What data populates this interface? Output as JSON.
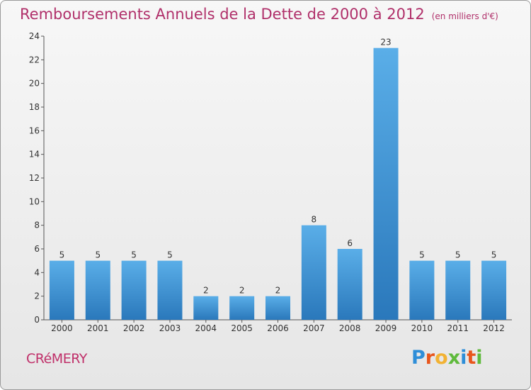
{
  "title": "Remboursements Annuels de la Dette de 2000 à 2012",
  "unit": "(en milliers d'€)",
  "commune": "CRéMERY",
  "brand": {
    "name": "Proxiti",
    "letter_colors": [
      "#2e8ed8",
      "#e8561c",
      "#f2b233",
      "#5fba3c",
      "#2e8ed8",
      "#e8561c",
      "#5fba3c"
    ]
  },
  "colors": {
    "bar": "#4da3e2",
    "bar_dark": "#2f7fc2",
    "title": "#b0306a"
  },
  "chart_data": {
    "type": "bar",
    "categories": [
      "2000",
      "2001",
      "2002",
      "2003",
      "2004",
      "2005",
      "2006",
      "2007",
      "2008",
      "2009",
      "2010",
      "2011",
      "2012"
    ],
    "values": [
      5,
      5,
      5,
      5,
      2,
      2,
      2,
      8,
      6,
      23,
      5,
      5,
      5
    ],
    "ylim": [
      0,
      24
    ],
    "yticks": [
      0,
      2,
      4,
      6,
      8,
      10,
      12,
      14,
      16,
      18,
      20,
      22,
      24
    ],
    "grid": false
  }
}
